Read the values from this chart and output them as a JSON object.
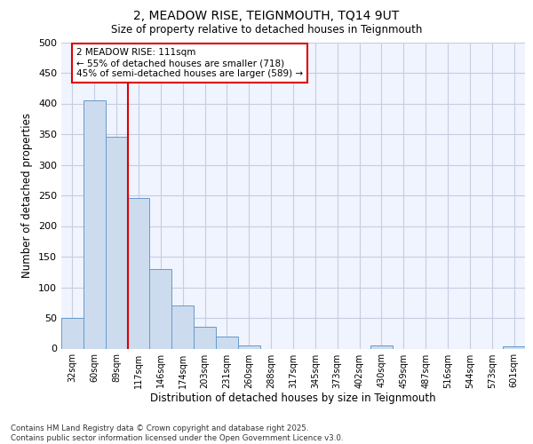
{
  "title_line1": "2, MEADOW RISE, TEIGNMOUTH, TQ14 9UT",
  "title_line2": "Size of property relative to detached houses in Teignmouth",
  "xlabel": "Distribution of detached houses by size in Teignmouth",
  "ylabel": "Number of detached properties",
  "categories": [
    "32sqm",
    "60sqm",
    "89sqm",
    "117sqm",
    "146sqm",
    "174sqm",
    "203sqm",
    "231sqm",
    "260sqm",
    "288sqm",
    "317sqm",
    "345sqm",
    "373sqm",
    "402sqm",
    "430sqm",
    "459sqm",
    "487sqm",
    "516sqm",
    "544sqm",
    "573sqm",
    "601sqm"
  ],
  "values": [
    50,
    405,
    345,
    245,
    130,
    70,
    35,
    20,
    5,
    0,
    0,
    0,
    0,
    0,
    5,
    0,
    0,
    0,
    0,
    0,
    4
  ],
  "bar_color": "#ccdcee",
  "bar_edge_color": "#6699cc",
  "red_line_x": 2.5,
  "red_line_color": "#dd0000",
  "annotation_line1": "2 MEADOW RISE: 111sqm",
  "annotation_line2": "← 55% of detached houses are smaller (718)",
  "annotation_line3": "45% of semi-detached houses are larger (589) →",
  "ann_box_edge_color": "#dd0000",
  "background_color": "#f0f4ff",
  "grid_color": "#c8cce0",
  "ylim": [
    0,
    500
  ],
  "yticks": [
    0,
    50,
    100,
    150,
    200,
    250,
    300,
    350,
    400,
    450,
    500
  ],
  "footer_line1": "Contains HM Land Registry data © Crown copyright and database right 2025.",
  "footer_line2": "Contains public sector information licensed under the Open Government Licence v3.0."
}
